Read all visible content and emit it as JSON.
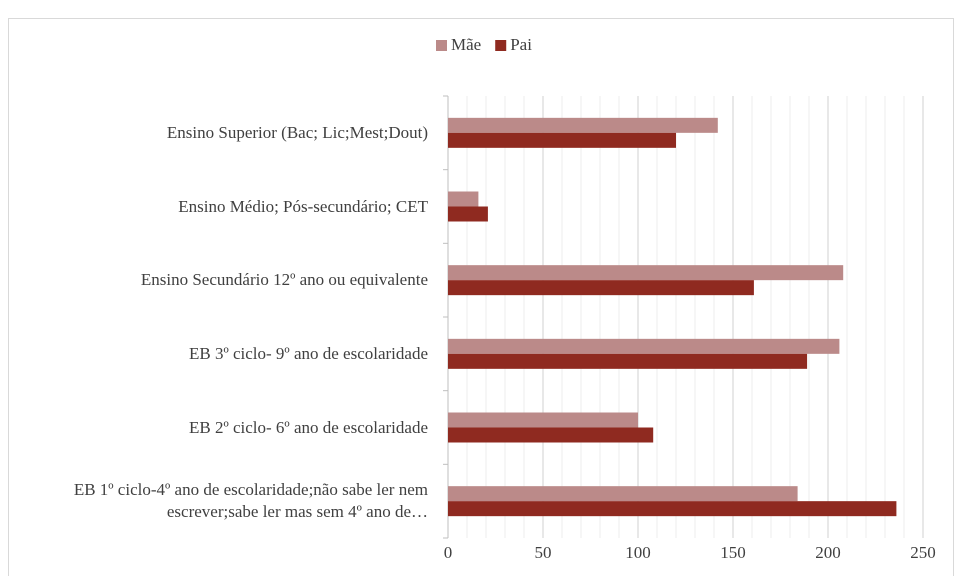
{
  "chart_data": {
    "type": "hbar",
    "categories": [
      "Ensino Superior (Bac; Lic;Mest;Dout)",
      "Ensino Médio; Pós-secundário; CET",
      "Ensino Secundário 12º ano ou equivalente",
      "EB 3º ciclo- 9º ano de escolaridade",
      "EB 2º ciclo- 6º ano de escolaridade",
      "EB 1º ciclo-4º ano de escolaridade;não sabe ler nem escrever;sabe ler mas sem 4º ano de…"
    ],
    "series": [
      {
        "name": "Mãe",
        "color": "#bb8a89",
        "values": [
          142,
          16,
          208,
          206,
          100,
          184
        ]
      },
      {
        "name": "Pai",
        "color": "#8f2a20",
        "values": [
          120,
          21,
          161,
          189,
          108,
          236
        ]
      }
    ],
    "xlim": [
      0,
      250
    ],
    "xticks": [
      0,
      50,
      100,
      150,
      200,
      250
    ],
    "grid": true,
    "minor_grid_step": 10,
    "legend": "top"
  }
}
